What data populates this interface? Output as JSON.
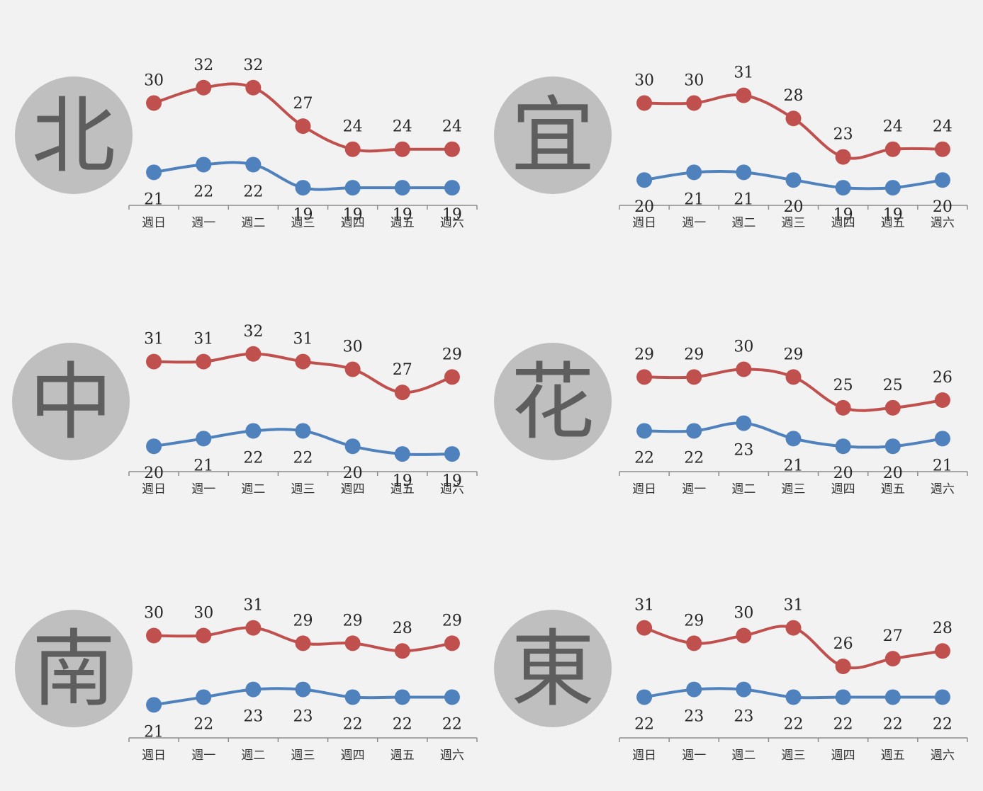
{
  "colors": {
    "high": "#c0504d",
    "low": "#4f81bd",
    "circle": "#bfbfbf",
    "axis": "#8c8c8c",
    "background": "#f2f2f2"
  },
  "chart_data": [
    {
      "type": "line",
      "region": "北",
      "categories": [
        "週日",
        "週一",
        "週二",
        "週三",
        "週四",
        "週五",
        "週六"
      ],
      "series": [
        {
          "values": [
            30,
            32,
            32,
            27,
            24,
            24,
            24
          ]
        },
        {
          "values": [
            21,
            22,
            22,
            19,
            19,
            19,
            19
          ]
        }
      ]
    },
    {
      "type": "line",
      "region": "宜",
      "categories": [
        "週日",
        "週一",
        "週二",
        "週三",
        "週四",
        "週五",
        "週六"
      ],
      "series": [
        {
          "values": [
            30,
            30,
            31,
            28,
            23,
            24,
            24
          ]
        },
        {
          "values": [
            20,
            21,
            21,
            20,
            19,
            19,
            20
          ]
        }
      ]
    },
    {
      "type": "line",
      "region": "中",
      "categories": [
        "週日",
        "週一",
        "週二",
        "週三",
        "週四",
        "週五",
        "週六"
      ],
      "series": [
        {
          "values": [
            31,
            31,
            32,
            31,
            30,
            27,
            29
          ]
        },
        {
          "values": [
            20,
            21,
            22,
            22,
            20,
            19,
            19
          ]
        }
      ]
    },
    {
      "type": "line",
      "region": "花",
      "categories": [
        "週日",
        "週一",
        "週二",
        "週三",
        "週四",
        "週五",
        "週六"
      ],
      "series": [
        {
          "values": [
            29,
            29,
            30,
            29,
            25,
            25,
            26
          ]
        },
        {
          "values": [
            22,
            22,
            23,
            21,
            20,
            20,
            21
          ]
        }
      ]
    },
    {
      "type": "line",
      "region": "南",
      "categories": [
        "週日",
        "週一",
        "週二",
        "週三",
        "週四",
        "週五",
        "週六"
      ],
      "series": [
        {
          "values": [
            30,
            30,
            31,
            29,
            29,
            28,
            29
          ]
        },
        {
          "values": [
            21,
            22,
            23,
            23,
            22,
            22,
            22
          ]
        }
      ]
    },
    {
      "type": "line",
      "region": "東",
      "categories": [
        "週日",
        "週一",
        "週二",
        "週三",
        "週四",
        "週五",
        "週六"
      ],
      "series": [
        {
          "values": [
            31,
            29,
            30,
            31,
            26,
            27,
            28
          ]
        },
        {
          "values": [
            22,
            23,
            23,
            22,
            22,
            22,
            22
          ]
        }
      ]
    }
  ]
}
